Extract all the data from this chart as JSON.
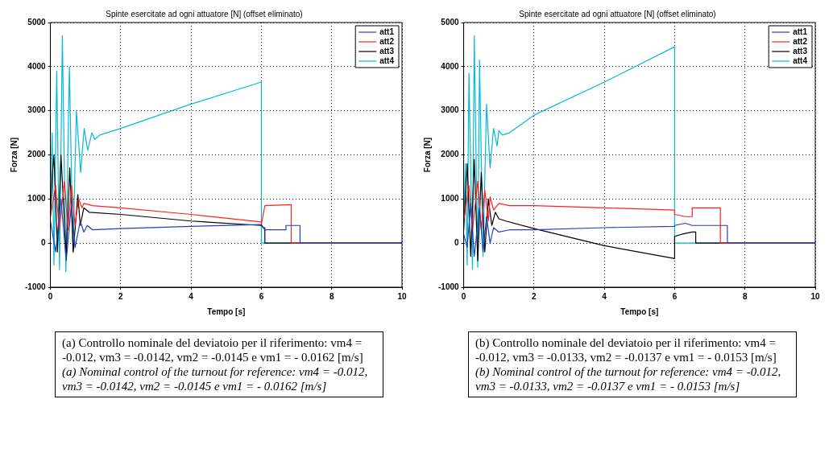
{
  "chart_data": [
    {
      "type": "line",
      "title": "Spinte esercitate ad ogni attuatore [N] (offset eliminato)",
      "xlabel": "Tempo [s]",
      "ylabel": "Forza [N]",
      "xlim": [
        0,
        10
      ],
      "xticks": [
        0,
        2,
        4,
        6,
        8,
        10
      ],
      "ylim": [
        -1000,
        5000
      ],
      "yticks": [
        -1000,
        0,
        1000,
        2000,
        3000,
        4000,
        5000
      ],
      "grid": true,
      "legend": "top right",
      "line_style": "solid",
      "marker": "none",
      "annotations": [
        "(a) Controllo nominale del deviatoio per il riferimento: vm4 = -0.012, vm3 = -0.0142, vm2 = -0.0145 e vm1 = - 0.0162 [m/s]",
        "(a) Nominal control of the turnout for reference: vm4 = -0.012, vm3 = -0.0142, vm2 = -0.0145 e vm1 = - 0.0162 [m/s]"
      ],
      "series": [
        {
          "name": "att1",
          "color": "#2040c0",
          "x": [
            0,
            0.15,
            0.3,
            0.45,
            0.6,
            0.7,
            0.85,
            0.95,
            1.05,
            1.2,
            2,
            4,
            6,
            6.1,
            6.7,
            6.7,
            7.1,
            7.1,
            10
          ],
          "values": [
            500,
            -200,
            1000,
            -400,
            900,
            -100,
            500,
            250,
            400,
            300,
            330,
            380,
            420,
            300,
            300,
            400,
            400,
            0,
            0
          ]
        },
        {
          "name": "att2",
          "color": "#ff2020",
          "x": [
            0,
            0.15,
            0.25,
            0.4,
            0.5,
            0.6,
            0.7,
            0.8,
            0.9,
            0.95,
            1.2,
            2,
            4,
            6,
            6,
            6.1,
            6.85,
            6.85,
            10
          ],
          "values": [
            600,
            1300,
            300,
            1400,
            300,
            1300,
            400,
            1000,
            800,
            900,
            850,
            800,
            650,
            480,
            420,
            850,
            870,
            0,
            0
          ]
        },
        {
          "name": "att3",
          "color": "#000000",
          "x": [
            0,
            0.05,
            0.1,
            0.2,
            0.3,
            0.45,
            0.55,
            0.65,
            0.78,
            0.85,
            0.95,
            1.1,
            2,
            4,
            6,
            6.05,
            6.1,
            6.1,
            10
          ],
          "values": [
            600,
            1500,
            2000,
            -200,
            2000,
            -300,
            1700,
            -200,
            1100,
            400,
            800,
            700,
            650,
            500,
            400,
            350,
            350,
            0,
            0
          ]
        },
        {
          "name": "att4",
          "color": "#00bcd4",
          "x": [
            0,
            0.05,
            0.1,
            0.18,
            0.26,
            0.34,
            0.44,
            0.54,
            0.64,
            0.74,
            0.86,
            0.96,
            1.06,
            1.18,
            1.26,
            1.4,
            2,
            4,
            6,
            6,
            10
          ],
          "values": [
            1000,
            2500,
            -500,
            3900,
            -600,
            4700,
            -650,
            4000,
            -200,
            3000,
            1600,
            2600,
            2100,
            2500,
            2350,
            2450,
            2600,
            3150,
            3650,
            0,
            0
          ]
        }
      ]
    },
    {
      "type": "line",
      "title": "Spinte esercitate ad ogni attuatore [N] (offset eliminato)",
      "xlabel": "Tempo [s]",
      "ylabel": "Forza [N]",
      "xlim": [
        0,
        10
      ],
      "xticks": [
        0,
        2,
        4,
        6,
        8,
        10
      ],
      "ylim": [
        -1000,
        5000
      ],
      "yticks": [
        -1000,
        0,
        1000,
        2000,
        3000,
        4000,
        5000
      ],
      "grid": true,
      "legend": "top right",
      "line_style": "solid",
      "marker": "none",
      "annotations": [
        "(b) Controllo nominale del deviatoio per il riferimento: vm4 = -0.012, vm3 = -0.0133, vm2 = -0.0137 e vm1 = - 0.0153 [m/s]",
        "(b) Nominal control of the turnout for reference: vm4 = -0.012, vm3 = -0.0133, vm2 = -0.0137 e vm1 = - 0.0153 [m/s]"
      ],
      "series": [
        {
          "name": "att1",
          "color": "#2040c0",
          "x": [
            0,
            0.1,
            0.2,
            0.3,
            0.45,
            0.55,
            0.65,
            0.75,
            0.85,
            1.0,
            1.3,
            2,
            4,
            6,
            6,
            6.3,
            6.5,
            7.5,
            7.5,
            10
          ],
          "values": [
            200,
            -100,
            900,
            -300,
            800,
            -200,
            600,
            0,
            350,
            250,
            300,
            300,
            350,
            380,
            400,
            450,
            400,
            400,
            0,
            0
          ]
        },
        {
          "name": "att2",
          "color": "#ff2020",
          "x": [
            0,
            0.15,
            0.25,
            0.4,
            0.5,
            0.6,
            0.7,
            0.75,
            0.85,
            1.0,
            1.3,
            2,
            4,
            6,
            6,
            6.3,
            6.5,
            6.5,
            7.3,
            7.3,
            10
          ],
          "values": [
            500,
            1300,
            300,
            1400,
            300,
            1200,
            500,
            1050,
            750,
            900,
            850,
            850,
            800,
            750,
            650,
            600,
            600,
            800,
            800,
            0,
            0
          ]
        },
        {
          "name": "att3",
          "color": "#000000",
          "x": [
            0,
            0.1,
            0.2,
            0.3,
            0.4,
            0.5,
            0.6,
            0.7,
            0.8,
            0.9,
            1.0,
            1.2,
            2,
            4,
            6,
            6,
            6.2,
            6.5,
            6.6,
            6.6,
            10
          ],
          "values": [
            300,
            1800,
            -300,
            1900,
            -400,
            1600,
            -200,
            1000,
            400,
            700,
            550,
            500,
            330,
            -60,
            -350,
            150,
            200,
            250,
            250,
            0,
            0
          ]
        },
        {
          "name": "att4",
          "color": "#00bcd4",
          "x": [
            0,
            0.05,
            0.1,
            0.15,
            0.25,
            0.3,
            0.4,
            0.45,
            0.55,
            0.65,
            0.75,
            0.85,
            0.95,
            1.0,
            1.1,
            1.3,
            2,
            4,
            6,
            6,
            10
          ],
          "values": [
            500,
            1800,
            -500,
            3850,
            -600,
            4700,
            -550,
            4150,
            -300,
            3150,
            1700,
            2600,
            2200,
            2550,
            2450,
            2500,
            2900,
            3650,
            4450,
            0,
            0
          ]
        }
      ]
    }
  ]
}
